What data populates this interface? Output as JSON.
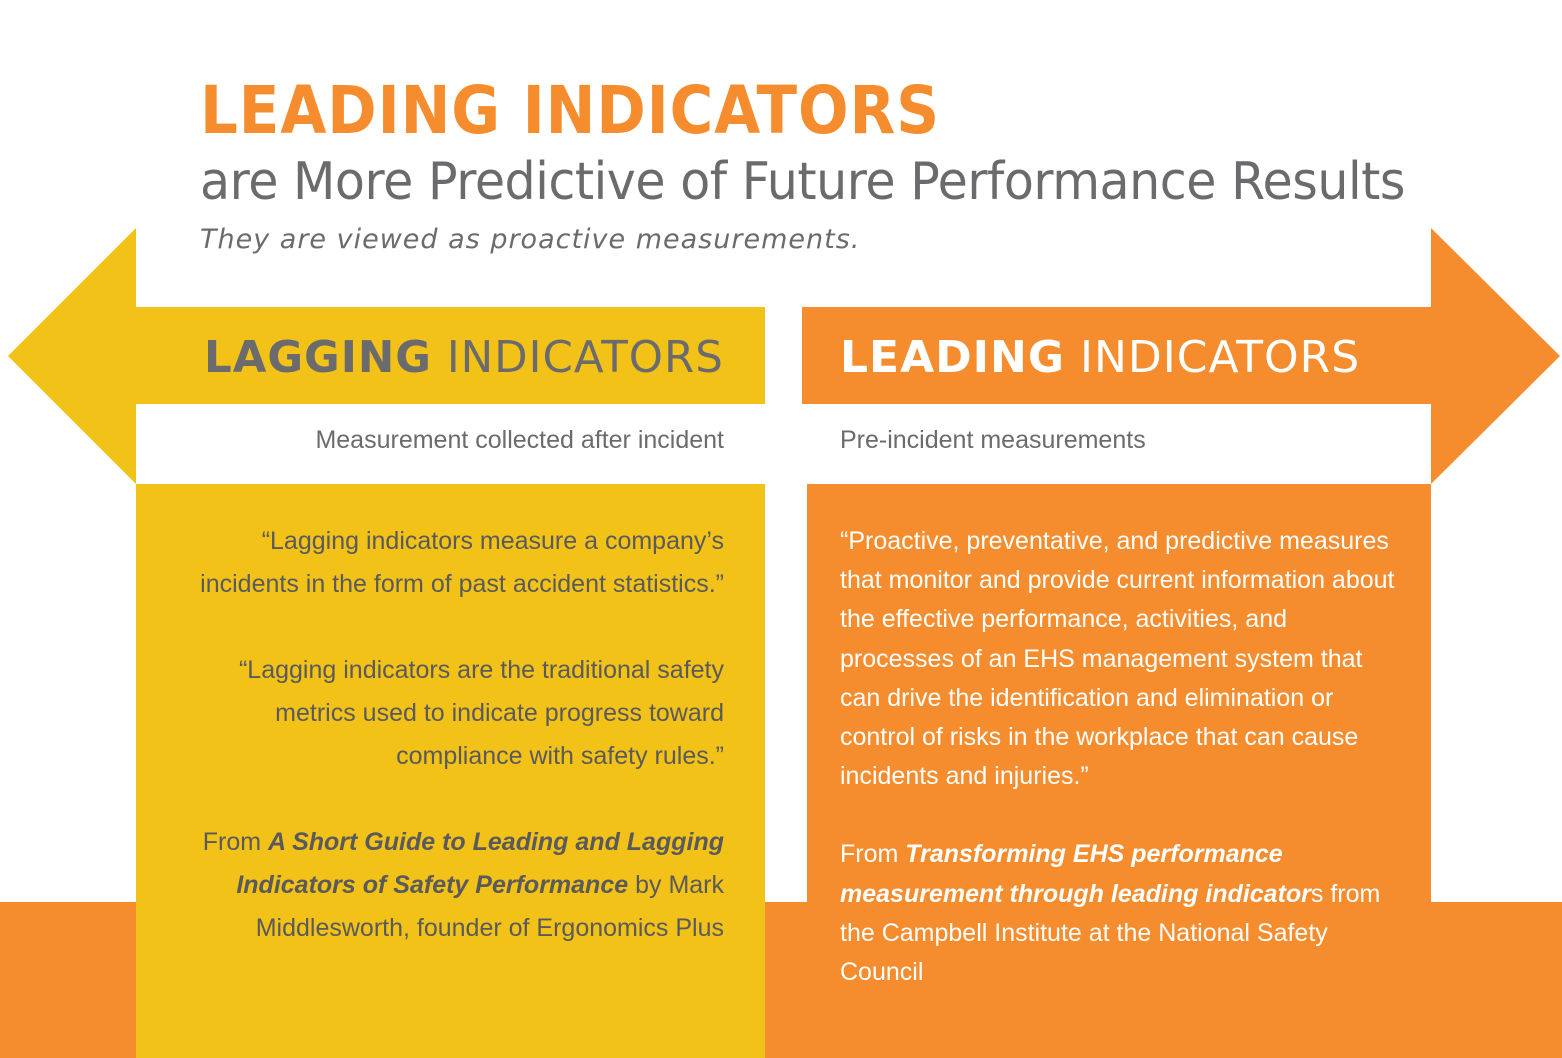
{
  "header": {
    "title": "LEADING INDICATORS",
    "subtitle": "are More Predictive of Future Performance Results",
    "tagline": "They are viewed as proactive measurements."
  },
  "lagging": {
    "heading_strong": "LAGGING",
    "heading_light": "INDICATORS",
    "caption": "Measurement collected after incident",
    "quote_1": "“Lagging indicators measure a company’s incidents in the form of past accident statistics.”",
    "quote_2": "“Lagging indicators are the traditional safety metrics used to indicate progress toward compliance with safety rules.”",
    "source_prefix": "From",
    "source_title": "A Short Guide to Leading and Lagging Indicators of Safety Performance",
    "source_suffix": "by Mark Middlesworth, founder of Ergonomics Plus"
  },
  "leading": {
    "heading_strong": "LEADING",
    "heading_light": "INDICATORS",
    "caption": "Pre-incident measurements",
    "quote_1": "“Proactive, preventative, and predictive measures that monitor and provide current information about the effective performance, activities, and processes of an EHS management system that can drive the identification and elimination or control of risks in the workplace that can cause incidents and injuries.”",
    "source_prefix": "From",
    "source_title": "Transforming EHS performance measurement through leading indicator",
    "source_suffix": "s from the Campbell Institute at the National Safety Council"
  },
  "colors": {
    "yellow": "#F2C218",
    "orange": "#F58D2E",
    "gray": "#6b6b6d"
  }
}
